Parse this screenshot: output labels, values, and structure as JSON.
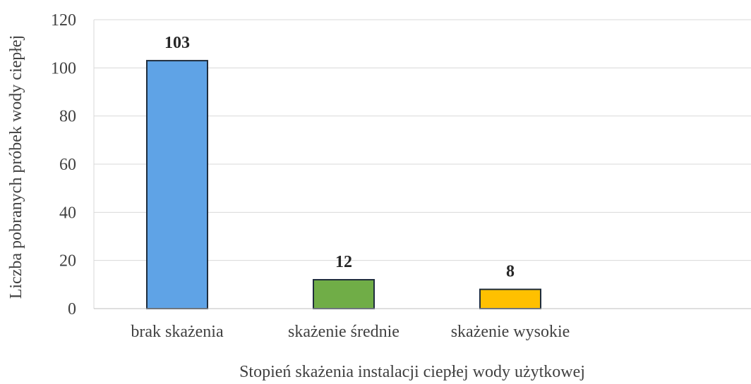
{
  "chart_data": {
    "type": "bar",
    "categories": [
      "brak skażenia",
      "skażenie średnie",
      "skażenie wysokie"
    ],
    "values": [
      103,
      12,
      8
    ],
    "data_labels": [
      "103",
      "12",
      "8"
    ],
    "colors": [
      "#5fa3e6",
      "#70ad47",
      "#ffc000"
    ],
    "xlabel": "Stopień skażenia instalacji ciepłej wody użytkowej",
    "ylabel": "Liczba pobranych próbek wody ciepłej",
    "ylim": [
      0,
      120
    ],
    "yticks": [
      "0",
      "20",
      "40",
      "60",
      "80",
      "100",
      "120"
    ],
    "grid": true,
    "legend": "none"
  }
}
